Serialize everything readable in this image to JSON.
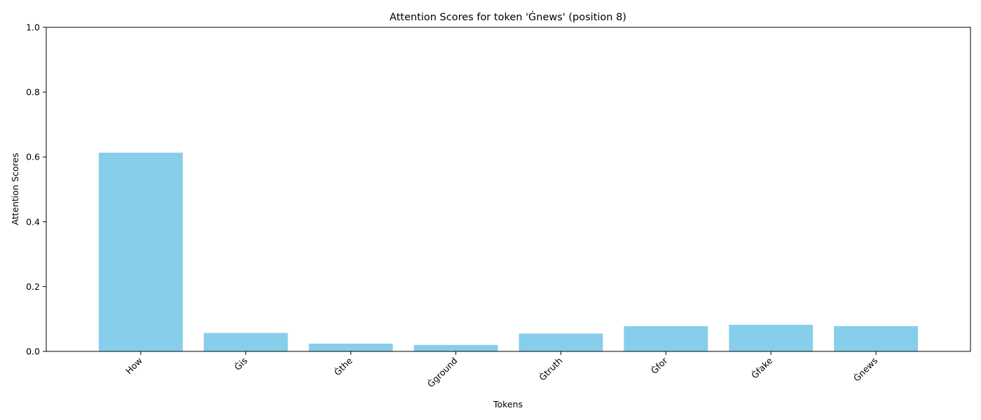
{
  "chart_data": {
    "type": "bar",
    "title": "Attention Scores for token 'Ġnews' (position 8)",
    "xlabel": "Tokens",
    "ylabel": "Attention Scores",
    "categories": [
      "How",
      "Ġis",
      "Ġthe",
      "Ġground",
      "Ġtruth",
      "Ġfor",
      "Ġfake",
      "Ġnews"
    ],
    "values": [
      0.613,
      0.057,
      0.024,
      0.02,
      0.055,
      0.078,
      0.082,
      0.078
    ],
    "ylim": [
      0,
      1.0
    ],
    "yticks": [
      0.0,
      0.2,
      0.4,
      0.6,
      0.8,
      1.0
    ],
    "ytick_labels": [
      "0.0",
      "0.2",
      "0.4",
      "0.6",
      "0.8",
      "1.0"
    ],
    "grid": false,
    "bar_color": "#87CEEB",
    "xtick_rotation": 45
  }
}
